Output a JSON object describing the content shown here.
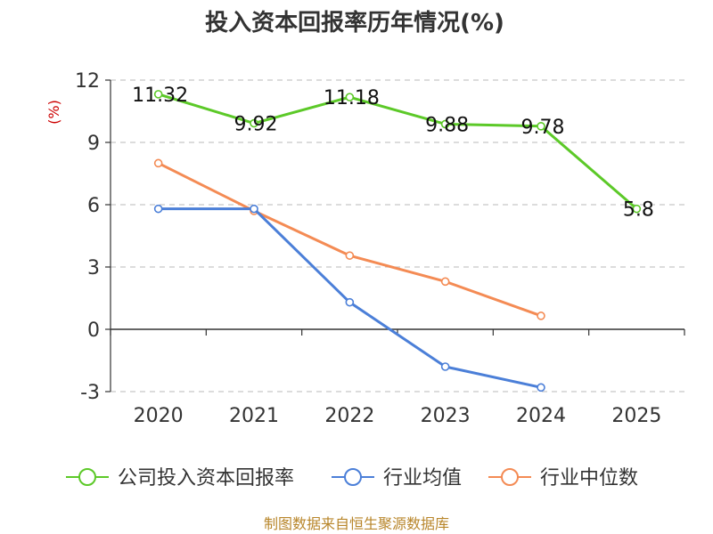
{
  "chart_data": {
    "type": "line",
    "title": "投入资本回报率历年情况(%)",
    "ylabel": "(%)",
    "categories": [
      "2020",
      "2021",
      "2022",
      "2023",
      "2024",
      "2025"
    ],
    "ylim": [
      -3,
      12
    ],
    "yticks": [
      12,
      9,
      6,
      3,
      0,
      -3
    ],
    "grid": true,
    "legend_position": "bottom",
    "series": [
      {
        "name": "公司投入资本回报率",
        "color": "#5cc928",
        "values": [
          11.32,
          9.92,
          11.18,
          9.88,
          9.78,
          5.8
        ],
        "labels": [
          "11.32",
          "9.92",
          "11.18",
          "9.88",
          "9.78",
          "5.8"
        ]
      },
      {
        "name": "行业均值",
        "color": "#4b7fd8",
        "values": [
          5.8,
          5.8,
          1.3,
          -1.8,
          -2.8,
          null
        ]
      },
      {
        "name": "行业中位数",
        "color": "#f48b54",
        "values": [
          8.0,
          5.7,
          3.55,
          2.3,
          0.65,
          null
        ]
      }
    ],
    "source": "制图数据来自恒生聚源数据库"
  }
}
